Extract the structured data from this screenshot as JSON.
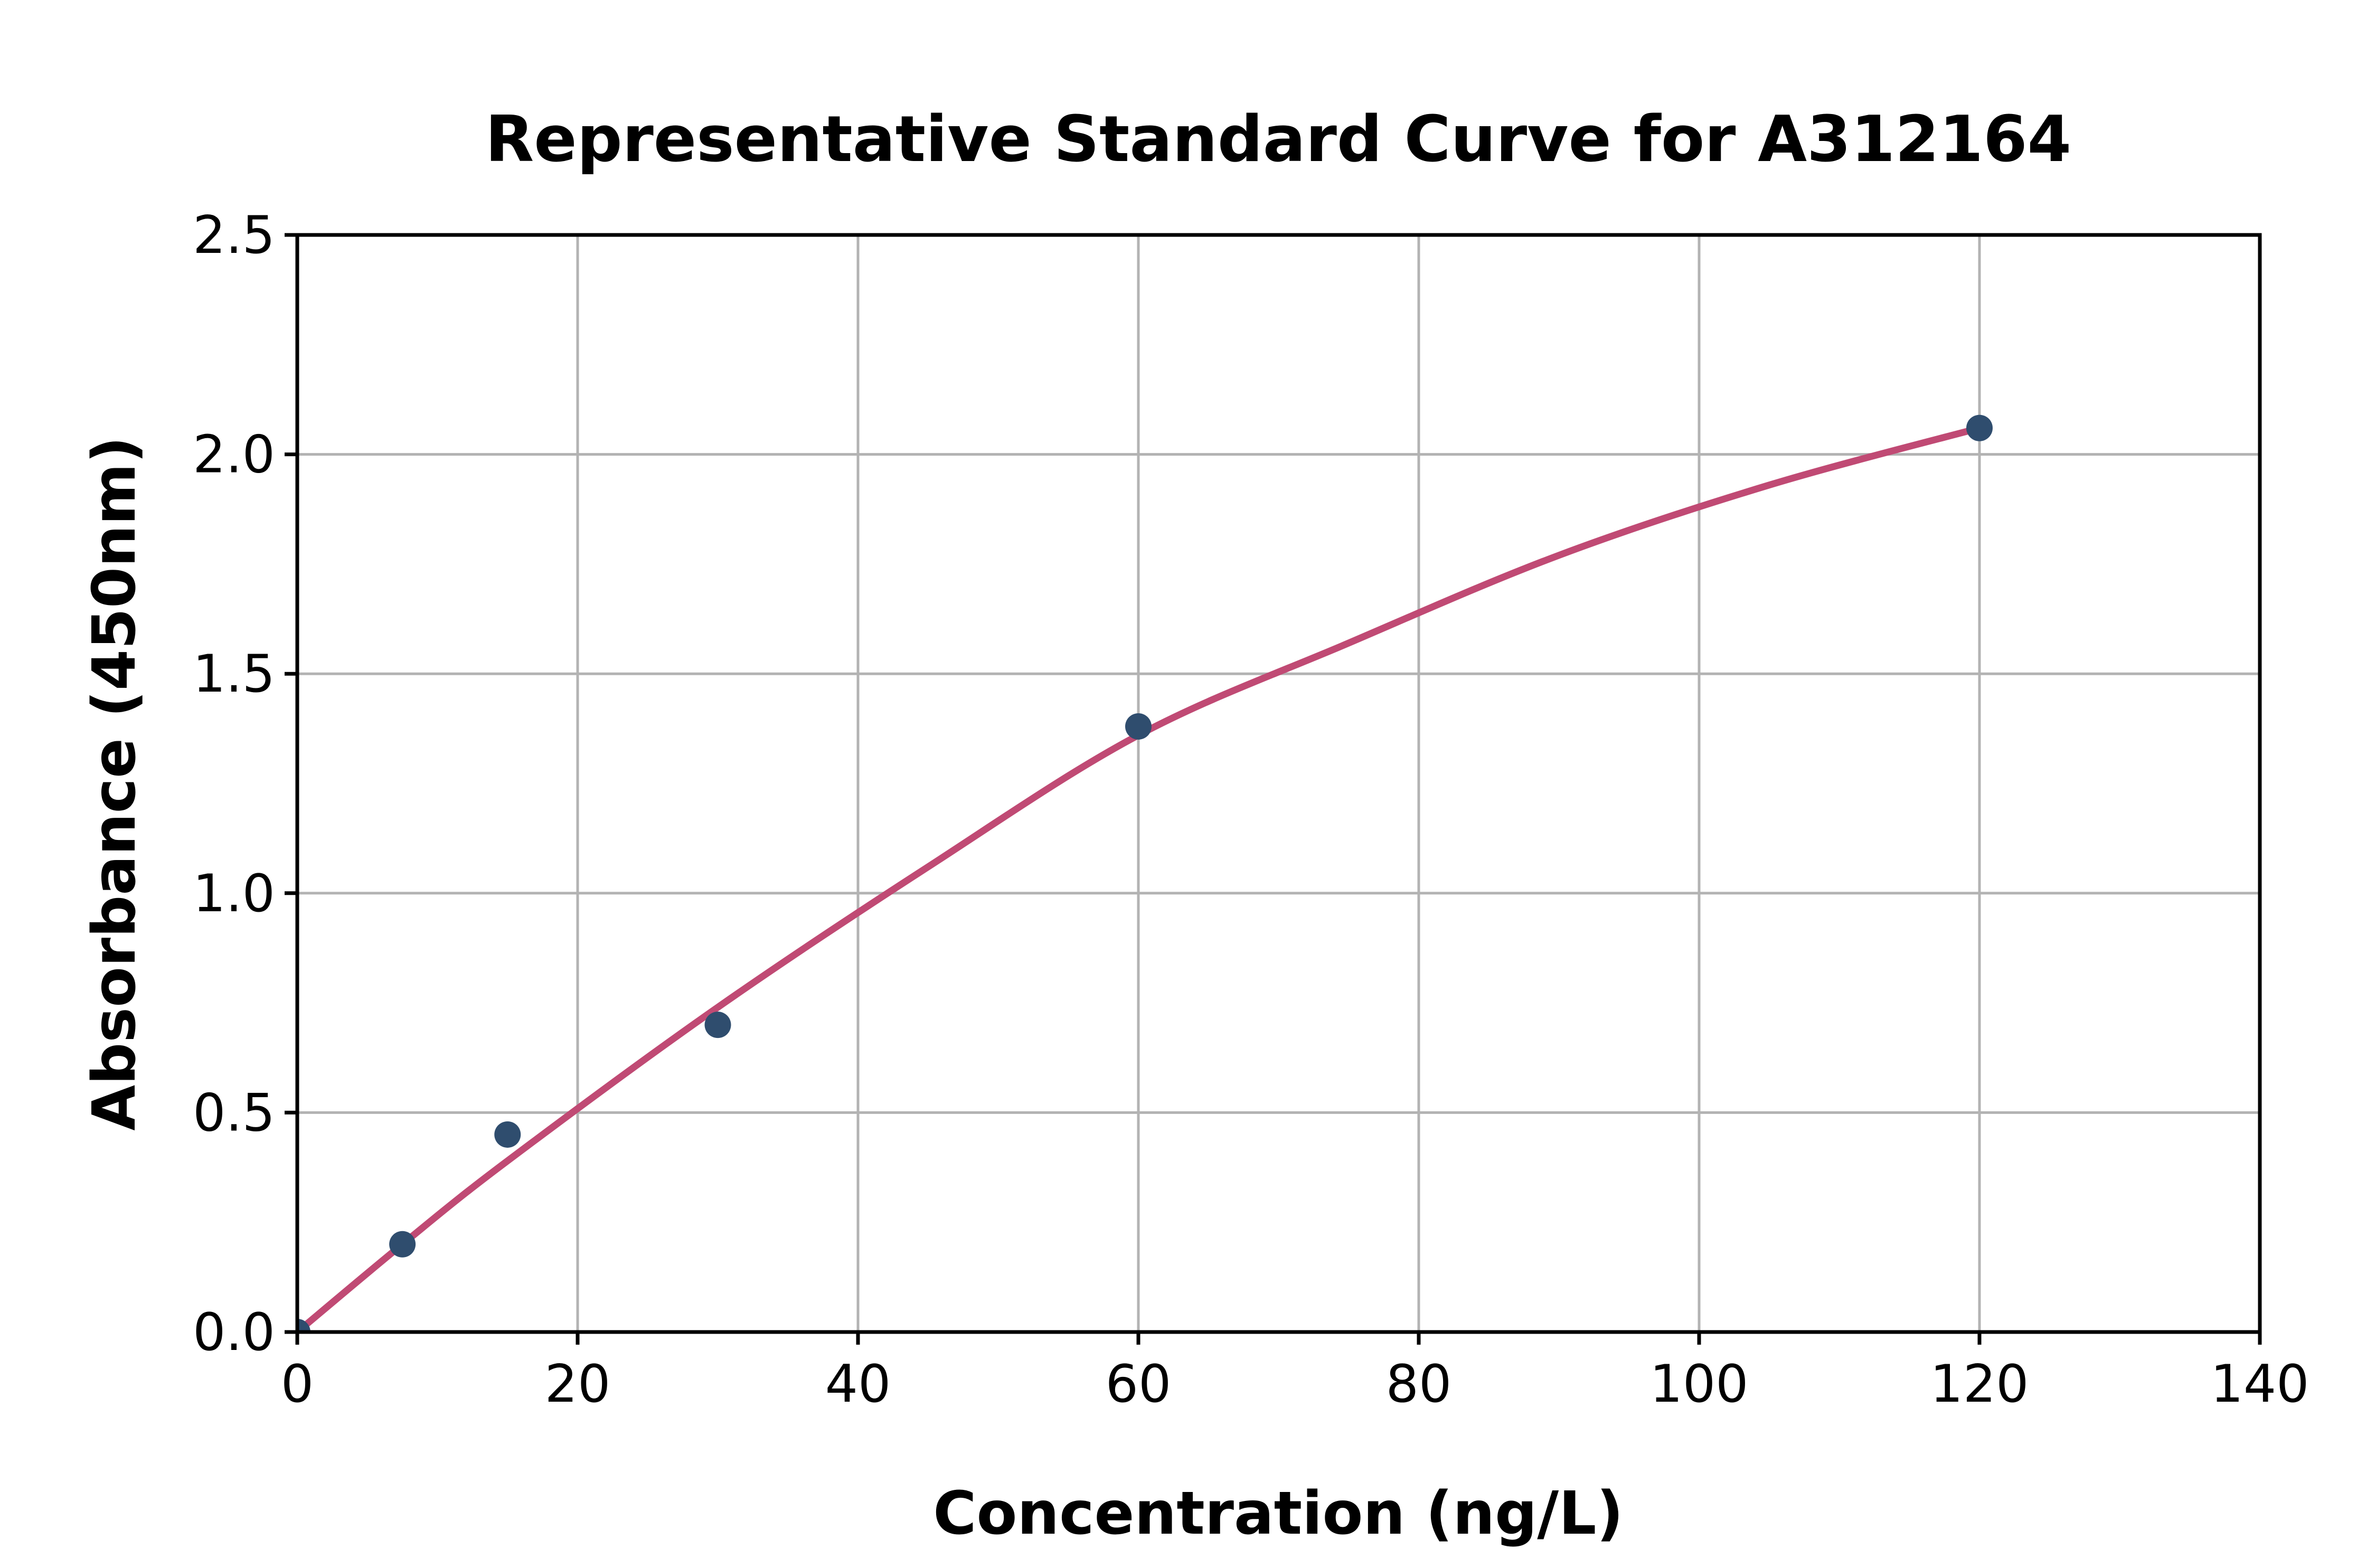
{
  "chart_data": {
    "type": "scatter",
    "title": "Representative Standard Curve for A312164",
    "xlabel": "Concentration (ng/L)",
    "ylabel": "Absorbance (450nm)",
    "xlim": [
      0,
      140
    ],
    "ylim": [
      0,
      2.5
    ],
    "grid": true,
    "legend": "none",
    "xticks": [
      {
        "value": 0,
        "label": "0"
      },
      {
        "value": 20,
        "label": "20"
      },
      {
        "value": 40,
        "label": "40"
      },
      {
        "value": 60,
        "label": "60"
      },
      {
        "value": 80,
        "label": "80"
      },
      {
        "value": 100,
        "label": "100"
      },
      {
        "value": 120,
        "label": "120"
      },
      {
        "value": 140,
        "label": "140"
      }
    ],
    "yticks": [
      {
        "value": 0.0,
        "label": "0.0"
      },
      {
        "value": 0.5,
        "label": "0.5"
      },
      {
        "value": 1.0,
        "label": "1.0"
      },
      {
        "value": 1.5,
        "label": "1.5"
      },
      {
        "value": 2.0,
        "label": "2.0"
      },
      {
        "value": 2.5,
        "label": "2.5"
      }
    ],
    "points": [
      {
        "x": 0,
        "y": 0.0
      },
      {
        "x": 7.5,
        "y": 0.2
      },
      {
        "x": 15,
        "y": 0.45
      },
      {
        "x": 30,
        "y": 0.7
      },
      {
        "x": 60,
        "y": 1.38
      },
      {
        "x": 120,
        "y": 2.06
      }
    ],
    "fit_curve": [
      [
        0,
        0.0
      ],
      [
        7.5,
        0.2
      ],
      [
        15,
        0.39
      ],
      [
        30,
        0.74
      ],
      [
        45,
        1.06
      ],
      [
        60,
        1.36
      ],
      [
        75,
        1.57
      ],
      [
        90,
        1.77
      ],
      [
        105,
        1.93
      ],
      [
        120,
        2.06
      ]
    ],
    "colors": {
      "marker": "#2f4d6e",
      "curve": "#c04a74",
      "grid": "#b3b3b3",
      "axis": "#000000",
      "background": "#ffffff"
    }
  }
}
